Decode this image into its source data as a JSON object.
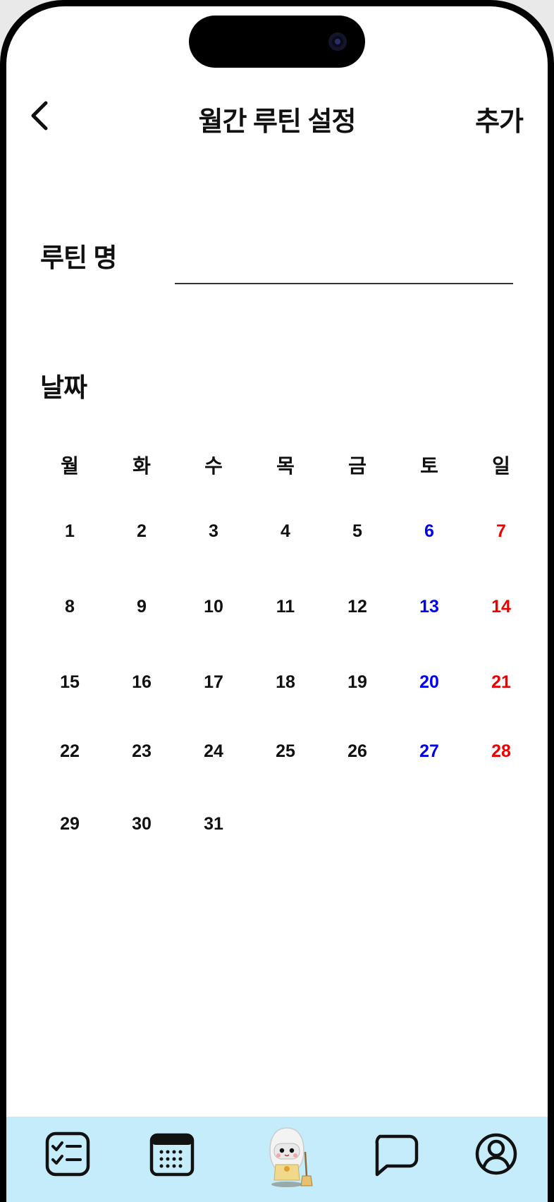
{
  "header": {
    "title": "월간 루틴 설정",
    "add_label": "추가"
  },
  "form": {
    "name_label": "루틴 명",
    "name_value": "",
    "name_placeholder": "",
    "date_label": "날짜"
  },
  "calendar": {
    "weekdays": [
      "월",
      "화",
      "수",
      "목",
      "금",
      "토",
      "일"
    ],
    "weeks": [
      [
        "1",
        "2",
        "3",
        "4",
        "5",
        "6",
        "7"
      ],
      [
        "8",
        "9",
        "10",
        "11",
        "12",
        "13",
        "14"
      ],
      [
        "15",
        "16",
        "17",
        "18",
        "19",
        "20",
        "21"
      ],
      [
        "22",
        "23",
        "24",
        "25",
        "26",
        "27",
        "28"
      ],
      [
        "29",
        "30",
        "31"
      ]
    ],
    "saturday_color": "#0000ee",
    "sunday_color": "#ee0000"
  },
  "tabbar": {
    "background": "#c5ecfb",
    "items": [
      {
        "icon": "checklist-icon"
      },
      {
        "icon": "calendar-icon"
      },
      {
        "icon": "robot-mascot-icon"
      },
      {
        "icon": "chat-bubble-icon"
      },
      {
        "icon": "profile-icon"
      }
    ]
  }
}
